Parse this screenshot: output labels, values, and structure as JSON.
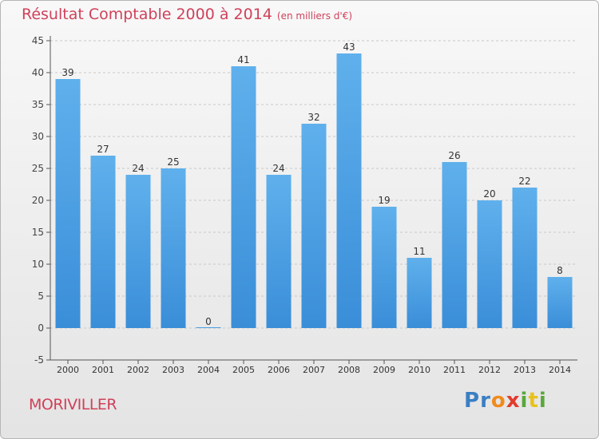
{
  "title": "Résultat Comptable 2000 à 2014",
  "unit_note": "(en milliers d'€)",
  "commune": "MORIVILLER",
  "brand": {
    "letters": [
      "P",
      "r",
      "o",
      "x",
      "i",
      "t",
      "i"
    ],
    "letter_colors": [
      "#3a7fc4",
      "#3a7fc4",
      "#f08b1e",
      "#e23b2e",
      "#58a83a",
      "#e8c21c",
      "#58a83a"
    ]
  },
  "colors": {
    "bar": "#3a8ed8",
    "bar_light": "#5fb0ec",
    "title": "#d0415a",
    "grid": "#c8c8c8"
  },
  "chart_data": {
    "type": "bar",
    "title": "Résultat Comptable 2000 à 2014",
    "ylabel": "en milliers d'€",
    "categories": [
      "2000",
      "2001",
      "2002",
      "2003",
      "2004",
      "2005",
      "2006",
      "2007",
      "2008",
      "2009",
      "2010",
      "2011",
      "2012",
      "2013",
      "2014"
    ],
    "values": [
      39,
      27,
      24,
      25,
      0,
      41,
      24,
      32,
      43,
      19,
      11,
      26,
      20,
      22,
      8
    ],
    "ylim": [
      -5,
      45
    ],
    "yticks": [
      -5,
      0,
      5,
      10,
      15,
      20,
      25,
      30,
      35,
      40,
      45
    ],
    "grid": true
  }
}
